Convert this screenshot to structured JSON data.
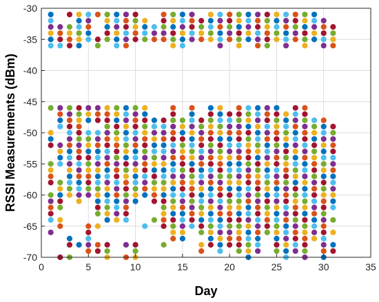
{
  "chart_data": {
    "type": "scatter",
    "title": "",
    "xlabel": "Day",
    "ylabel": "RSSI Measurements (dBm)",
    "xlim": [
      0,
      35
    ],
    "ylim": [
      -70,
      -30
    ],
    "xticks": [
      0,
      5,
      10,
      15,
      20,
      25,
      30,
      35
    ],
    "yticks": [
      -70,
      -65,
      -60,
      -55,
      -50,
      -45,
      -40,
      -35,
      -30
    ],
    "grid": true,
    "legend": "none",
    "series_colors": [
      "#0072BD",
      "#D95319",
      "#EDB120",
      "#7E2F8E",
      "#77AC30",
      "#4DBEEE",
      "#A2142F"
    ],
    "columns": [
      {
        "x": 1,
        "values": [
          -31,
          -32,
          -33,
          -34,
          -35,
          -36,
          -46,
          -50,
          -51,
          -52,
          -55,
          -56,
          -57,
          -58,
          -60,
          -61,
          -62,
          -63,
          -64,
          -66
        ]
      },
      {
        "x": 2,
        "values": [
          -33,
          -34,
          -35,
          -36,
          -46,
          -47,
          -48,
          -49,
          -52,
          -53,
          -54,
          -55,
          -58,
          -59,
          -60,
          -61,
          -62,
          -64,
          -65,
          -70
        ]
      },
      {
        "x": 3,
        "values": [
          -31,
          -33,
          -34,
          -35,
          -36,
          -46,
          -47,
          -48,
          -49,
          -50,
          -51,
          -52,
          -53,
          -54,
          -55,
          -56,
          -57,
          -58,
          -59,
          -60,
          -67,
          -68,
          -70
        ]
      },
      {
        "x": 4,
        "values": [
          -31,
          -32,
          -33,
          -34,
          -35,
          -36,
          -46,
          -47,
          -48,
          -49,
          -50,
          -51,
          -52,
          -53,
          -54,
          -55,
          -56,
          -57,
          -58,
          -59,
          -60,
          -61,
          -68
        ]
      },
      {
        "x": 5,
        "values": [
          -31,
          -32,
          -33,
          -34,
          -35,
          -46,
          -47,
          -48,
          -50,
          -51,
          -52,
          -53,
          -54,
          -55,
          -56,
          -57,
          -58,
          -59,
          -60,
          -65,
          -66,
          -67,
          -68,
          -69
        ]
      },
      {
        "x": 6,
        "values": [
          -31,
          -35,
          -36,
          -46,
          -47,
          -48,
          -50,
          -51,
          -52,
          -53,
          -54,
          -55,
          -56,
          -57,
          -58,
          -59,
          -60,
          -61,
          -62,
          -63,
          -65,
          -68,
          -69
        ]
      },
      {
        "x": 7,
        "values": [
          -31,
          -32,
          -33,
          -34,
          -35,
          -46,
          -47,
          -48,
          -49,
          -50,
          -51,
          -52,
          -53,
          -54,
          -55,
          -56,
          -57,
          -58,
          -59,
          -60,
          -61,
          -62,
          -63,
          -64,
          -68,
          -69,
          -70
        ]
      },
      {
        "x": 8,
        "values": [
          -31,
          -32,
          -33,
          -34,
          -35,
          -36,
          -46,
          -47,
          -48,
          -49,
          -50,
          -51,
          -52,
          -53,
          -54,
          -55,
          -56,
          -57,
          -58,
          -59,
          -60,
          -61,
          -62,
          -63,
          -64
        ]
      },
      {
        "x": 9,
        "values": [
          -31,
          -32,
          -33,
          -34,
          -35,
          -36,
          -46,
          -47,
          -48,
          -49,
          -50,
          -51,
          -52,
          -53,
          -54,
          -55,
          -56,
          -57,
          -58,
          -59,
          -60,
          -61,
          -62,
          -63,
          -64,
          -68,
          -70
        ]
      },
      {
        "x": 10,
        "values": [
          -31,
          -32,
          -33,
          -34,
          -35,
          -46,
          -47,
          -48,
          -49,
          -50,
          -51,
          -52,
          -53,
          -54,
          -55,
          -56,
          -57,
          -58,
          -59,
          -60,
          -61,
          -68,
          -69,
          -70
        ]
      },
      {
        "x": 11,
        "values": [
          -32,
          -33,
          -34,
          -35,
          -46,
          -47,
          -48,
          -49,
          -50,
          -51,
          -52,
          -53,
          -54,
          -55,
          -56,
          -57,
          -58,
          -59,
          -60,
          -65
        ]
      },
      {
        "x": 12,
        "values": [
          -33,
          -34,
          -35,
          -48,
          -49,
          -50,
          -51,
          -52,
          -53,
          -54,
          -55,
          -56,
          -57,
          -58,
          -59,
          -60,
          -61,
          -64
        ]
      },
      {
        "x": 13,
        "values": [
          -31,
          -32,
          -33,
          -34,
          -35,
          -48,
          -49,
          -50,
          -51,
          -52,
          -53,
          -54,
          -55,
          -56,
          -57,
          -58,
          -59,
          -60,
          -61,
          -62,
          -63,
          -64,
          -65,
          -68
        ]
      },
      {
        "x": 14,
        "values": [
          -31,
          -32,
          -33,
          -34,
          -35,
          -36,
          -46,
          -47,
          -48,
          -49,
          -50,
          -51,
          -52,
          -53,
          -54,
          -55,
          -56,
          -57,
          -58,
          -59,
          -60,
          -61,
          -62,
          -63,
          -64,
          -65,
          -66,
          -67
        ]
      },
      {
        "x": 15,
        "values": [
          -31,
          -32,
          -33,
          -34,
          -35,
          -36,
          -48,
          -49,
          -50,
          -51,
          -52,
          -53,
          -54,
          -55,
          -56,
          -57,
          -58,
          -59,
          -60,
          -61,
          -62,
          -63,
          -64,
          -65,
          -66,
          -67
        ]
      },
      {
        "x": 16,
        "values": [
          -31,
          -32,
          -33,
          -34,
          -35,
          -46,
          -47,
          -48,
          -49,
          -50,
          -51,
          -52,
          -53,
          -54,
          -55,
          -56,
          -57,
          -58,
          -59,
          -60,
          -61,
          -62,
          -63,
          -64,
          -65
        ]
      },
      {
        "x": 17,
        "values": [
          -32,
          -33,
          -34,
          -35,
          -48,
          -49,
          -50,
          -51,
          -52,
          -53,
          -54,
          -55,
          -56,
          -57,
          -58,
          -59,
          -60,
          -61,
          -62,
          -63,
          -64,
          -65,
          -66,
          -68,
          -69
        ]
      },
      {
        "x": 18,
        "values": [
          -31,
          -32,
          -33,
          -34,
          -35,
          -46,
          -47,
          -48,
          -49,
          -50,
          -51,
          -52,
          -53,
          -54,
          -55,
          -56,
          -57,
          -58,
          -59,
          -60,
          -61,
          -62,
          -63,
          -64,
          -65,
          -66,
          -67,
          -68
        ]
      },
      {
        "x": 19,
        "values": [
          -31,
          -32,
          -33,
          -34,
          -35,
          -36,
          -46,
          -47,
          -48,
          -49,
          -50,
          -51,
          -52,
          -53,
          -54,
          -55,
          -56,
          -57,
          -58,
          -59,
          -60,
          -61,
          -62,
          -63,
          -64,
          -65,
          -66,
          -67,
          -68,
          -69
        ]
      },
      {
        "x": 20,
        "values": [
          -31,
          -32,
          -33,
          -34,
          -35,
          -47,
          -48,
          -49,
          -50,
          -51,
          -52,
          -53,
          -54,
          -55,
          -56,
          -57,
          -58,
          -59,
          -60,
          -61,
          -62,
          -63,
          -64,
          -65,
          -66,
          -67,
          -68
        ]
      },
      {
        "x": 21,
        "values": [
          -31,
          -32,
          -33,
          -34,
          -35,
          -36,
          -46,
          -47,
          -48,
          -49,
          -50,
          -51,
          -52,
          -53,
          -54,
          -55,
          -56,
          -57,
          -58,
          -59,
          -60,
          -61,
          -62,
          -63,
          -64,
          -65,
          -66,
          -67,
          -68,
          -69
        ]
      },
      {
        "x": 22,
        "values": [
          -31,
          -32,
          -33,
          -34,
          -35,
          -46,
          -47,
          -48,
          -49,
          -50,
          -51,
          -52,
          -53,
          -54,
          -55,
          -56,
          -57,
          -58,
          -59,
          -60,
          -61,
          -62,
          -63,
          -64,
          -65,
          -66,
          -67,
          -68,
          -69,
          -70
        ]
      },
      {
        "x": 23,
        "values": [
          -31,
          -32,
          -33,
          -34,
          -35,
          -36,
          -46,
          -47,
          -48,
          -49,
          -50,
          -51,
          -52,
          -53,
          -54,
          -55,
          -56,
          -57,
          -58,
          -59,
          -60,
          -61,
          -62,
          -63,
          -64,
          -65,
          -66,
          -67,
          -68,
          -69
        ]
      },
      {
        "x": 24,
        "values": [
          -31,
          -32,
          -33,
          -34,
          -35,
          -36,
          -46,
          -47,
          -48,
          -49,
          -50,
          -51,
          -52,
          -53,
          -54,
          -55,
          -56,
          -57,
          -58,
          -59,
          -60,
          -61,
          -62,
          -63,
          -64,
          -65,
          -66
        ]
      },
      {
        "x": 25,
        "values": [
          -31,
          -32,
          -33,
          -34,
          -35,
          -46,
          -47,
          -48,
          -49,
          -50,
          -51,
          -52,
          -53,
          -54,
          -55,
          -56,
          -57,
          -58,
          -59,
          -60,
          -61,
          -62,
          -63,
          -64,
          -65,
          -66,
          -67,
          -68,
          -69
        ]
      },
      {
        "x": 26,
        "values": [
          -31,
          -32,
          -33,
          -34,
          -35,
          -36,
          -47,
          -48,
          -49,
          -50,
          -51,
          -52,
          -53,
          -54,
          -55,
          -56,
          -57,
          -58,
          -59,
          -60,
          -61,
          -62,
          -63,
          -64,
          -65,
          -66,
          -67,
          -68,
          -69,
          -70
        ]
      },
      {
        "x": 27,
        "values": [
          -31,
          -32,
          -33,
          -34,
          -35,
          -46,
          -47,
          -48,
          -49,
          -50,
          -51,
          -52,
          -53,
          -54,
          -55,
          -56,
          -57,
          -58,
          -59,
          -60,
          -61,
          -62,
          -63,
          -64,
          -65,
          -66,
          -67,
          -68,
          -69
        ]
      },
      {
        "x": 28,
        "values": [
          -31,
          -32,
          -33,
          -34,
          -35,
          -36,
          -46,
          -47,
          -48,
          -49,
          -50,
          -51,
          -52,
          -53,
          -54,
          -55,
          -56,
          -57,
          -58,
          -59,
          -60,
          -61,
          -62,
          -63,
          -64,
          -65,
          -66,
          -67,
          -68,
          -69,
          -70
        ]
      },
      {
        "x": 29,
        "values": [
          -31,
          -32,
          -33,
          -34,
          -35,
          -48,
          -49,
          -50,
          -51,
          -52,
          -53,
          -54,
          -55,
          -56,
          -57,
          -58,
          -59,
          -60,
          -61,
          -62,
          -63,
          -64,
          -65,
          -66,
          -67
        ]
      },
      {
        "x": 30,
        "values": [
          -32,
          -33,
          -34,
          -35,
          -36,
          -48,
          -49,
          -50,
          -51,
          -52,
          -53,
          -54,
          -55,
          -56,
          -57,
          -58,
          -59,
          -60,
          -61,
          -62,
          -63,
          -64,
          -65,
          -66,
          -67,
          -68,
          -69,
          -70
        ]
      },
      {
        "x": 31,
        "values": [
          -33,
          -34,
          -35,
          -36,
          -49,
          -50,
          -51,
          -52,
          -53,
          -54,
          -55,
          -56,
          -57,
          -58,
          -59,
          -60,
          -61,
          -62,
          -64,
          -66,
          -68,
          -69
        ]
      }
    ]
  }
}
